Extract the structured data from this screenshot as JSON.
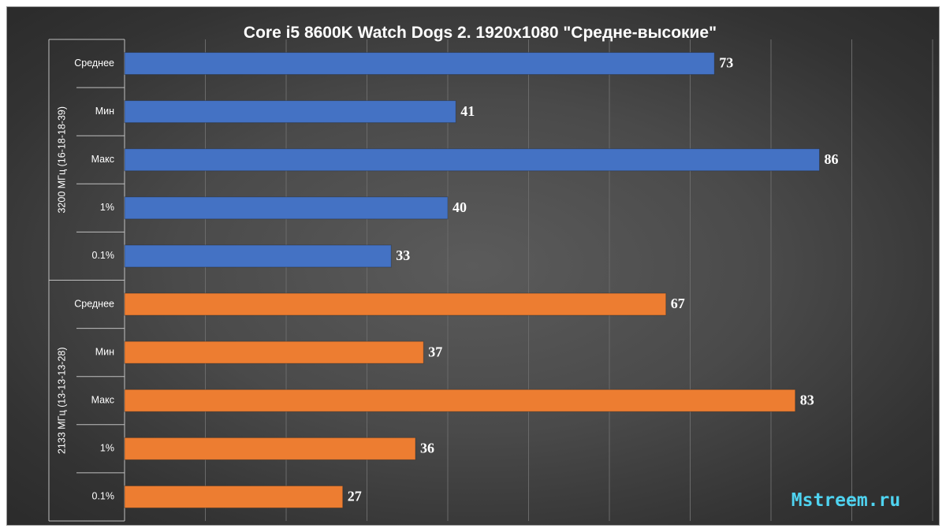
{
  "chart_data": {
    "type": "bar",
    "orientation": "horizontal",
    "title": "Core i5 8600K Watch Dogs 2. 1920x1080 \"Средне-высокие\"",
    "xlim": [
      0,
      100
    ],
    "grid": true,
    "groups": [
      {
        "name": "3200 МГц (16-18-18-39)",
        "color": "#4472c4",
        "categories": [
          "Среднее",
          "Мин",
          "Макс",
          "1%",
          "0.1%"
        ],
        "values": [
          73,
          41,
          86,
          40,
          33
        ]
      },
      {
        "name": "2133 МГц (13-13-13-28)",
        "color": "#ed7d31",
        "categories": [
          "Среднее",
          "Мин",
          "Макс",
          "1%",
          "0.1%"
        ],
        "values": [
          67,
          37,
          83,
          36,
          27
        ]
      }
    ]
  },
  "watermark": "Mstreem.ru"
}
